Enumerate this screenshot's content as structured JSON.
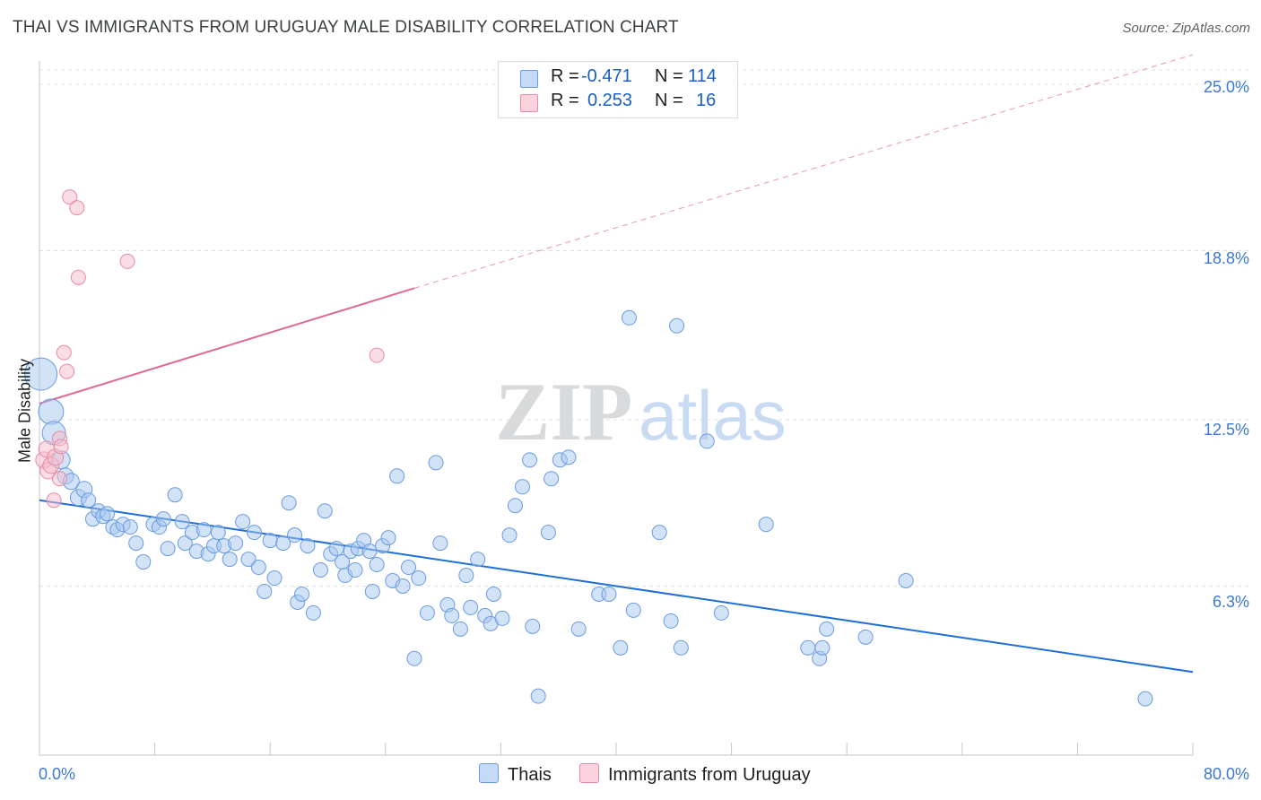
{
  "title": "THAI VS IMMIGRANTS FROM URUGUAY MALE DISABILITY CORRELATION CHART",
  "source": "Source: ZipAtlas.com",
  "colors": {
    "blue_fill": "#a8c7f0",
    "blue_stroke": "#6a9be0",
    "blue_line": "#1f6fd6",
    "pink_fill": "#f6bccb",
    "pink_stroke": "#e98aa5",
    "pink_line": "#e06a93",
    "tick_text": "#3b78d8"
  },
  "legend": {
    "rows": [
      {
        "r_label": "R =",
        "r_value": "-0.471",
        "n_label": "N =",
        "n_value": "114"
      },
      {
        "r_label": "R =",
        "r_value": "0.253",
        "n_label": "N =",
        "n_value": "16"
      }
    ]
  },
  "chart_data": {
    "type": "scatter",
    "title": "THAI VS IMMIGRANTS FROM URUGUAY MALE DISABILITY CORRELATION CHART",
    "xlabel": "",
    "ylabel": "Male Disability",
    "xlim": [
      0,
      80
    ],
    "ylim": [
      0,
      25.8
    ],
    "x_tick_labels": [
      "0.0%",
      "80.0%"
    ],
    "y_tick_values": [
      6.3,
      12.5,
      18.8,
      25.0
    ],
    "y_tick_labels": [
      "6.3%",
      "12.5%",
      "18.8%",
      "25.0%"
    ],
    "watermark": {
      "zip": "ZIP",
      "atlas": "atlas"
    },
    "series": [
      {
        "name": "Thais",
        "R": -0.471,
        "N": 114,
        "trend": {
          "x0": 0,
          "y0": 9.5,
          "x1": 80,
          "y1": 3.1
        },
        "points": [
          {
            "x": 0.1,
            "y": 14.2,
            "s": 18
          },
          {
            "x": 0.8,
            "y": 12.8,
            "s": 14
          },
          {
            "x": 1.0,
            "y": 12.0,
            "s": 13
          },
          {
            "x": 1.5,
            "y": 11.0,
            "s": 10
          },
          {
            "x": 1.8,
            "y": 10.4,
            "s": 9
          },
          {
            "x": 2.2,
            "y": 10.2,
            "s": 9
          },
          {
            "x": 2.7,
            "y": 9.6,
            "s": 9
          },
          {
            "x": 3.1,
            "y": 9.9,
            "s": 9
          },
          {
            "x": 3.4,
            "y": 9.5,
            "s": 8
          },
          {
            "x": 3.7,
            "y": 8.8,
            "s": 8
          },
          {
            "x": 4.1,
            "y": 9.1,
            "s": 8
          },
          {
            "x": 4.4,
            "y": 8.9,
            "s": 8
          },
          {
            "x": 4.7,
            "y": 9.0,
            "s": 8
          },
          {
            "x": 5.1,
            "y": 8.5,
            "s": 8
          },
          {
            "x": 5.4,
            "y": 8.4,
            "s": 8
          },
          {
            "x": 5.8,
            "y": 8.6,
            "s": 8
          },
          {
            "x": 6.3,
            "y": 8.5,
            "s": 8
          },
          {
            "x": 6.7,
            "y": 7.9,
            "s": 8
          },
          {
            "x": 7.2,
            "y": 7.2,
            "s": 8
          },
          {
            "x": 7.9,
            "y": 8.6,
            "s": 8
          },
          {
            "x": 8.3,
            "y": 8.5,
            "s": 8
          },
          {
            "x": 8.6,
            "y": 8.8,
            "s": 8
          },
          {
            "x": 8.9,
            "y": 7.7,
            "s": 8
          },
          {
            "x": 9.4,
            "y": 9.7,
            "s": 8
          },
          {
            "x": 9.9,
            "y": 8.7,
            "s": 8
          },
          {
            "x": 10.1,
            "y": 7.9,
            "s": 8
          },
          {
            "x": 10.6,
            "y": 8.3,
            "s": 8
          },
          {
            "x": 10.9,
            "y": 7.6,
            "s": 8
          },
          {
            "x": 11.4,
            "y": 8.4,
            "s": 8
          },
          {
            "x": 11.7,
            "y": 7.5,
            "s": 8
          },
          {
            "x": 12.1,
            "y": 7.8,
            "s": 8
          },
          {
            "x": 12.4,
            "y": 8.3,
            "s": 8
          },
          {
            "x": 12.8,
            "y": 7.8,
            "s": 8
          },
          {
            "x": 13.2,
            "y": 7.3,
            "s": 8
          },
          {
            "x": 13.6,
            "y": 7.9,
            "s": 8
          },
          {
            "x": 14.1,
            "y": 8.7,
            "s": 8
          },
          {
            "x": 14.5,
            "y": 7.3,
            "s": 8
          },
          {
            "x": 14.9,
            "y": 8.3,
            "s": 8
          },
          {
            "x": 15.2,
            "y": 7.0,
            "s": 8
          },
          {
            "x": 15.6,
            "y": 6.1,
            "s": 8
          },
          {
            "x": 16.0,
            "y": 8.0,
            "s": 8
          },
          {
            "x": 16.3,
            "y": 6.6,
            "s": 8
          },
          {
            "x": 16.9,
            "y": 7.9,
            "s": 8
          },
          {
            "x": 17.3,
            "y": 9.4,
            "s": 8
          },
          {
            "x": 17.7,
            "y": 8.2,
            "s": 8
          },
          {
            "x": 17.9,
            "y": 5.7,
            "s": 8
          },
          {
            "x": 18.2,
            "y": 6.0,
            "s": 8
          },
          {
            "x": 18.6,
            "y": 7.8,
            "s": 8
          },
          {
            "x": 19.0,
            "y": 5.3,
            "s": 8
          },
          {
            "x": 19.5,
            "y": 6.9,
            "s": 8
          },
          {
            "x": 19.8,
            "y": 9.1,
            "s": 8
          },
          {
            "x": 20.2,
            "y": 7.5,
            "s": 8
          },
          {
            "x": 20.6,
            "y": 7.7,
            "s": 8
          },
          {
            "x": 21.0,
            "y": 7.2,
            "s": 8
          },
          {
            "x": 21.2,
            "y": 6.7,
            "s": 8
          },
          {
            "x": 21.6,
            "y": 7.6,
            "s": 8
          },
          {
            "x": 21.9,
            "y": 6.9,
            "s": 8
          },
          {
            "x": 22.1,
            "y": 7.7,
            "s": 8
          },
          {
            "x": 22.5,
            "y": 8.0,
            "s": 8
          },
          {
            "x": 22.9,
            "y": 7.6,
            "s": 8
          },
          {
            "x": 23.1,
            "y": 6.1,
            "s": 8
          },
          {
            "x": 23.4,
            "y": 7.1,
            "s": 8
          },
          {
            "x": 23.8,
            "y": 7.8,
            "s": 8
          },
          {
            "x": 24.2,
            "y": 8.1,
            "s": 8
          },
          {
            "x": 24.5,
            "y": 6.5,
            "s": 8
          },
          {
            "x": 24.8,
            "y": 10.4,
            "s": 8
          },
          {
            "x": 25.2,
            "y": 6.3,
            "s": 8
          },
          {
            "x": 25.6,
            "y": 7.0,
            "s": 8
          },
          {
            "x": 26.0,
            "y": 3.6,
            "s": 8
          },
          {
            "x": 26.3,
            "y": 6.6,
            "s": 8
          },
          {
            "x": 26.9,
            "y": 5.3,
            "s": 8
          },
          {
            "x": 27.5,
            "y": 10.9,
            "s": 8
          },
          {
            "x": 27.8,
            "y": 7.9,
            "s": 8
          },
          {
            "x": 28.3,
            "y": 5.6,
            "s": 8
          },
          {
            "x": 28.6,
            "y": 5.2,
            "s": 8
          },
          {
            "x": 29.2,
            "y": 4.7,
            "s": 8
          },
          {
            "x": 29.6,
            "y": 6.7,
            "s": 8
          },
          {
            "x": 29.9,
            "y": 5.5,
            "s": 8
          },
          {
            "x": 30.4,
            "y": 7.3,
            "s": 8
          },
          {
            "x": 30.9,
            "y": 5.2,
            "s": 8
          },
          {
            "x": 31.3,
            "y": 4.9,
            "s": 8
          },
          {
            "x": 31.5,
            "y": 6.0,
            "s": 8
          },
          {
            "x": 32.1,
            "y": 5.1,
            "s": 8
          },
          {
            "x": 32.6,
            "y": 8.2,
            "s": 8
          },
          {
            "x": 33.0,
            "y": 9.3,
            "s": 8
          },
          {
            "x": 33.5,
            "y": 10.0,
            "s": 8
          },
          {
            "x": 34.0,
            "y": 11.0,
            "s": 8
          },
          {
            "x": 34.2,
            "y": 4.8,
            "s": 8
          },
          {
            "x": 34.6,
            "y": 2.2,
            "s": 8
          },
          {
            "x": 35.3,
            "y": 8.3,
            "s": 8
          },
          {
            "x": 35.5,
            "y": 10.3,
            "s": 8
          },
          {
            "x": 36.1,
            "y": 11.0,
            "s": 8
          },
          {
            "x": 36.7,
            "y": 11.1,
            "s": 8
          },
          {
            "x": 37.4,
            "y": 4.7,
            "s": 8
          },
          {
            "x": 38.8,
            "y": 6.0,
            "s": 8
          },
          {
            "x": 39.5,
            "y": 6.0,
            "s": 8
          },
          {
            "x": 40.3,
            "y": 4.0,
            "s": 8
          },
          {
            "x": 40.9,
            "y": 16.3,
            "s": 8
          },
          {
            "x": 41.2,
            "y": 5.4,
            "s": 8
          },
          {
            "x": 43.0,
            "y": 8.3,
            "s": 8
          },
          {
            "x": 43.8,
            "y": 5.0,
            "s": 8
          },
          {
            "x": 44.2,
            "y": 16.0,
            "s": 8
          },
          {
            "x": 44.5,
            "y": 4.0,
            "s": 8
          },
          {
            "x": 46.3,
            "y": 11.7,
            "s": 8
          },
          {
            "x": 47.3,
            "y": 5.3,
            "s": 8
          },
          {
            "x": 50.4,
            "y": 8.6,
            "s": 8
          },
          {
            "x": 53.3,
            "y": 4.0,
            "s": 8
          },
          {
            "x": 54.1,
            "y": 3.6,
            "s": 8
          },
          {
            "x": 54.3,
            "y": 4.0,
            "s": 8
          },
          {
            "x": 54.6,
            "y": 4.7,
            "s": 8
          },
          {
            "x": 57.3,
            "y": 4.4,
            "s": 8
          },
          {
            "x": 60.1,
            "y": 6.5,
            "s": 8
          },
          {
            "x": 76.7,
            "y": 2.1,
            "s": 8
          }
        ]
      },
      {
        "name": "Immigrants from Uruguay",
        "R": 0.253,
        "N": 16,
        "trend": {
          "x0": 0,
          "y0": 13.1,
          "x1": 26,
          "y1": 17.4,
          "x_end_dashed": 80,
          "y_end_dashed": 26.1
        },
        "points": [
          {
            "x": 0.3,
            "y": 11.0,
            "s": 9
          },
          {
            "x": 0.5,
            "y": 11.4,
            "s": 9
          },
          {
            "x": 0.6,
            "y": 10.6,
            "s": 9
          },
          {
            "x": 0.8,
            "y": 10.8,
            "s": 9
          },
          {
            "x": 1.0,
            "y": 9.5,
            "s": 8
          },
          {
            "x": 1.1,
            "y": 11.1,
            "s": 9
          },
          {
            "x": 1.4,
            "y": 10.3,
            "s": 8
          },
          {
            "x": 1.4,
            "y": 11.8,
            "s": 8
          },
          {
            "x": 1.5,
            "y": 11.5,
            "s": 8
          },
          {
            "x": 1.7,
            "y": 15.0,
            "s": 8
          },
          {
            "x": 1.9,
            "y": 14.3,
            "s": 8
          },
          {
            "x": 2.1,
            "y": 20.8,
            "s": 8
          },
          {
            "x": 2.6,
            "y": 20.4,
            "s": 8
          },
          {
            "x": 2.7,
            "y": 17.8,
            "s": 8
          },
          {
            "x": 6.1,
            "y": 18.4,
            "s": 8
          },
          {
            "x": 23.4,
            "y": 14.9,
            "s": 8
          }
        ]
      }
    ]
  },
  "bottom_legend": {
    "items": [
      {
        "label": "Thais"
      },
      {
        "label": "Immigrants from Uruguay"
      }
    ]
  }
}
